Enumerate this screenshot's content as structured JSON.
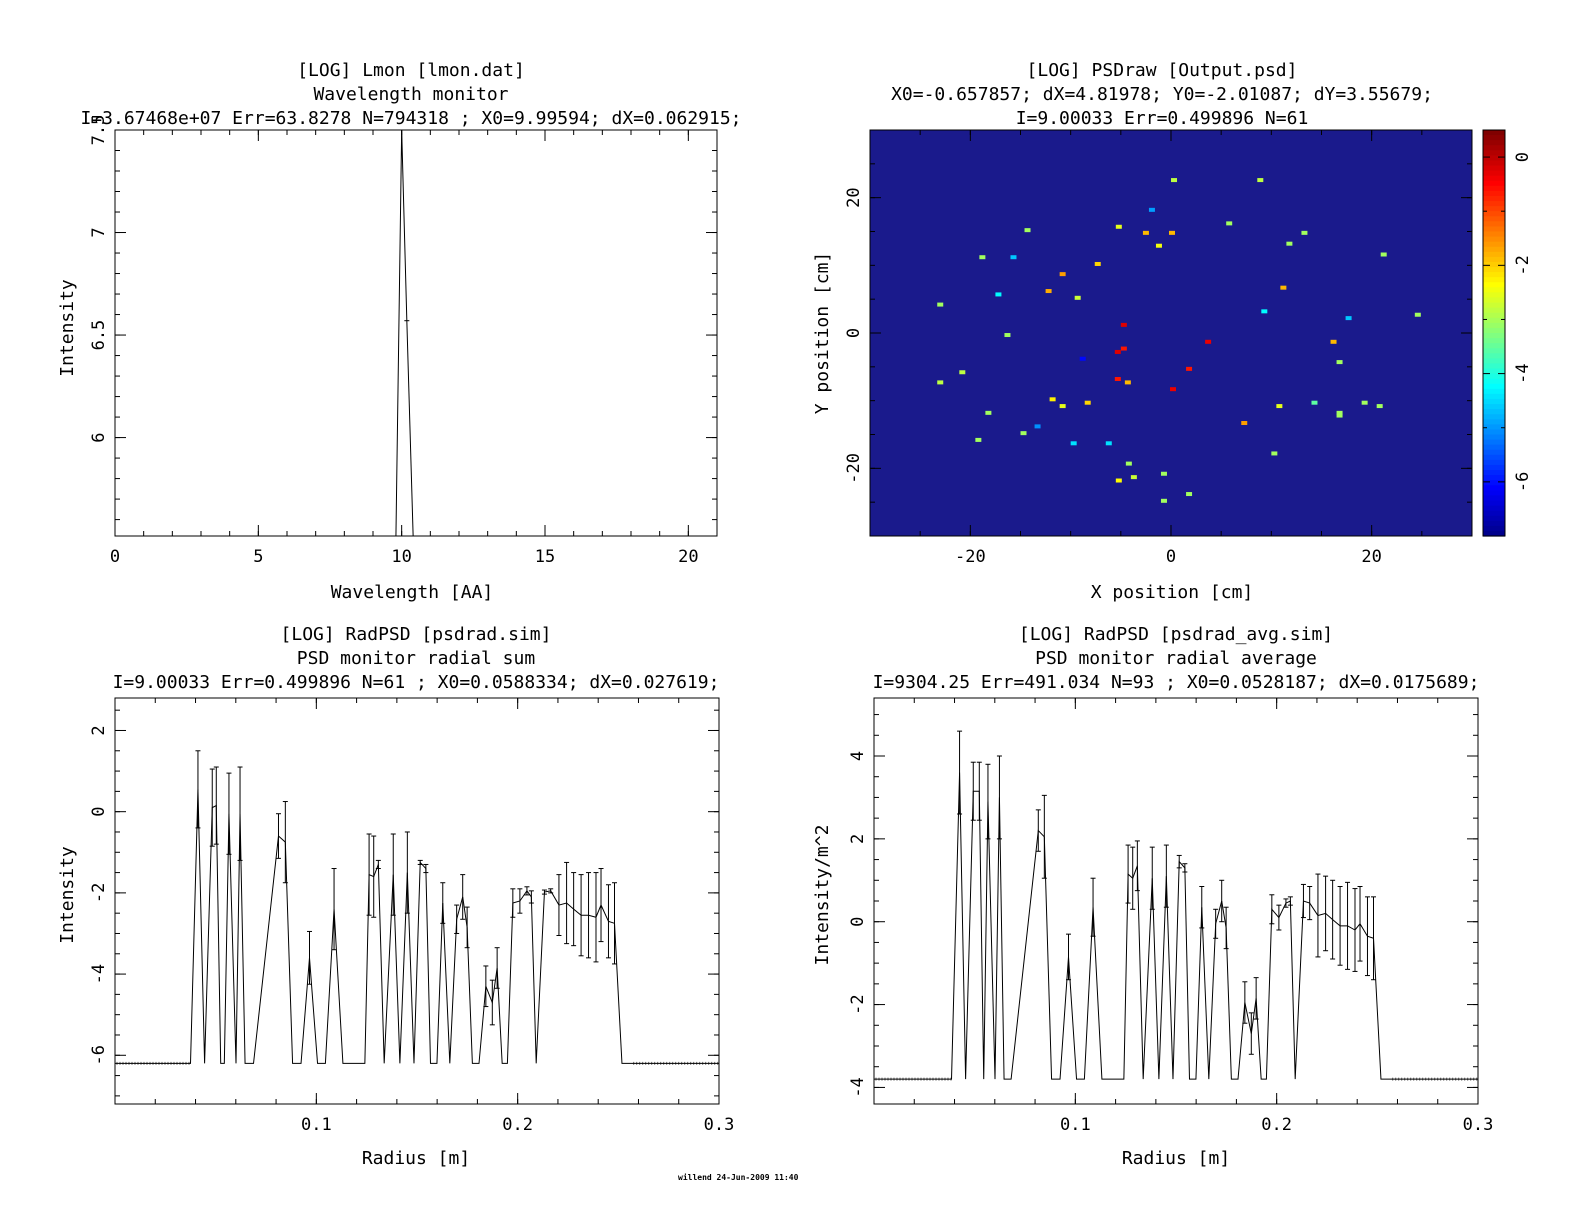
{
  "footer": "willend 24-Jun-2009 11:40",
  "colors": {
    "background": "#ffffff",
    "axes": "#000000",
    "psd_background": "#1a1a8c"
  },
  "chart_data": [
    {
      "id": "lmon",
      "type": "line",
      "title_lines": [
        "[LOG] Lmon [lmon.dat]",
        "Wavelength monitor",
        "I=3.67468e+07 Err=63.8278 N=794318 ; X0=9.99594; dX=0.062915;"
      ],
      "xlabel": "Wavelength [AA]",
      "ylabel": "Intensity",
      "xlim": [
        0,
        21
      ],
      "ylim": [
        5.52,
        7.5
      ],
      "xticks": [
        "0",
        "5",
        "10",
        "15",
        "20"
      ],
      "yticks": [
        "6",
        "6.5",
        "7",
        "7.5"
      ],
      "x": [
        9.8,
        10.0,
        10.18,
        10.4
      ],
      "y": [
        5.52,
        7.5,
        6.57,
        5.52
      ]
    },
    {
      "id": "psdraw",
      "type": "heatmap",
      "title_lines": [
        "[LOG] PSDraw [Output.psd]",
        "X0=-0.657857; dX=4.81978; Y0=-2.01087; dY=3.55679;",
        "I=9.00033 Err=0.499896 N=61"
      ],
      "xlabel": "X position [cm]",
      "ylabel": "Y position [cm]",
      "xlim": [
        -30,
        30
      ],
      "ylim": [
        -30,
        30
      ],
      "xticks": [
        "-20",
        "0",
        "20"
      ],
      "yticks": [
        "-20",
        "0",
        "20"
      ],
      "colorbar_range": [
        -7,
        0.5
      ],
      "colorbar_ticks": [
        "0",
        "-2",
        "-4",
        "-6"
      ],
      "points": [
        [
          0.3,
          22.6,
          -2.8
        ],
        [
          8.9,
          22.6,
          -2.8
        ],
        [
          -1.9,
          18.2,
          -4.9
        ],
        [
          5.8,
          16.2,
          -3.0
        ],
        [
          -14.3,
          15.2,
          -3.0
        ],
        [
          -5.2,
          15.7,
          -2.5
        ],
        [
          -2.5,
          14.8,
          -1.8
        ],
        [
          0.1,
          14.8,
          -1.8
        ],
        [
          13.3,
          14.8,
          -3.0
        ],
        [
          -1.2,
          12.9,
          -2.4
        ],
        [
          11.8,
          13.2,
          -3.0
        ],
        [
          -18.8,
          11.2,
          -3.0
        ],
        [
          -15.7,
          11.2,
          -4.6
        ],
        [
          21.2,
          11.6,
          -3.0
        ],
        [
          -7.3,
          10.2,
          -2.0
        ],
        [
          -10.8,
          8.7,
          -1.6
        ],
        [
          11.2,
          6.7,
          -1.8
        ],
        [
          -12.2,
          6.2,
          -1.7
        ],
        [
          -17.2,
          5.7,
          -4.2
        ],
        [
          -9.3,
          5.2,
          -2.7
        ],
        [
          -23.0,
          4.2,
          -3.0
        ],
        [
          9.3,
          3.2,
          -4.2
        ],
        [
          17.7,
          2.2,
          -4.6
        ],
        [
          24.6,
          2.7,
          -3.0
        ],
        [
          -4.7,
          1.2,
          -0.2
        ],
        [
          -16.3,
          -0.3,
          -3.0
        ],
        [
          3.7,
          -1.3,
          -0.3
        ],
        [
          16.2,
          -1.3,
          -1.8
        ],
        [
          -4.7,
          -2.3,
          -0.6
        ],
        [
          -5.3,
          -2.8,
          -0.2
        ],
        [
          -8.8,
          -3.8,
          -6.0
        ],
        [
          16.8,
          -4.3,
          -3.0
        ],
        [
          1.8,
          -5.3,
          -0.6
        ],
        [
          -20.8,
          -5.8,
          -2.8
        ],
        [
          -5.3,
          -6.8,
          -0.6
        ],
        [
          -4.3,
          -7.3,
          -1.8
        ],
        [
          -23.0,
          -7.3,
          -2.8
        ],
        [
          0.2,
          -8.3,
          -0.3
        ],
        [
          -11.8,
          -9.8,
          -2.2
        ],
        [
          -8.3,
          -10.3,
          -2.0
        ],
        [
          -10.8,
          -10.8,
          -2.5
        ],
        [
          19.3,
          -10.3,
          -3.0
        ],
        [
          20.8,
          -10.8,
          -3.0
        ],
        [
          14.3,
          -10.3,
          -3.5
        ],
        [
          10.8,
          -10.8,
          -2.5
        ],
        [
          16.8,
          -11.8,
          -3.0
        ],
        [
          16.8,
          -12.2,
          -3.0
        ],
        [
          -18.2,
          -11.8,
          -3.0
        ],
        [
          7.3,
          -13.3,
          -1.6
        ],
        [
          -13.3,
          -13.8,
          -5.0
        ],
        [
          -14.7,
          -14.8,
          -3.0
        ],
        [
          -19.2,
          -15.8,
          -3.0
        ],
        [
          -9.7,
          -16.3,
          -4.4
        ],
        [
          -6.2,
          -16.3,
          -4.4
        ],
        [
          10.3,
          -17.8,
          -3.0
        ],
        [
          -4.2,
          -19.3,
          -3.0
        ],
        [
          -0.7,
          -20.8,
          -3.0
        ],
        [
          -3.7,
          -21.3,
          -2.7
        ],
        [
          -5.2,
          -21.8,
          -2.3
        ],
        [
          1.8,
          -23.8,
          -3.0
        ],
        [
          -0.7,
          -24.8,
          -3.0
        ]
      ]
    },
    {
      "id": "psdrad",
      "type": "line",
      "title_lines": [
        "[LOG] RadPSD [psdrad.sim]",
        "PSD monitor radial sum",
        "I=9.00033 Err=0.499896 N=61 ; X0=0.0588334; dX=0.027619;"
      ],
      "xlabel": "Radius [m]",
      "ylabel": "Intensity",
      "xlim": [
        0,
        0.3
      ],
      "ylim": [
        -7.2,
        2.8
      ],
      "xticks": [
        "0.1",
        "0.2",
        "0.3"
      ],
      "yticks": [
        "-6",
        "-4",
        "-2",
        "0",
        "2"
      ],
      "baseline": -6.2,
      "x": [
        0.0375,
        0.0412,
        0.0445,
        0.0483,
        0.0503,
        0.0525,
        0.0543,
        0.0566,
        0.0601,
        0.0621,
        0.0646,
        0.0688,
        0.0812,
        0.0846,
        0.0882,
        0.0924,
        0.0966,
        0.1006,
        0.1045,
        0.1088,
        0.1132,
        0.1241,
        0.1262,
        0.1285,
        0.1308,
        0.1337,
        0.1382,
        0.1415,
        0.1452,
        0.1485,
        0.1516,
        0.1544,
        0.1567,
        0.1599,
        0.1628,
        0.1663,
        0.1697,
        0.1727,
        0.1749,
        0.1775,
        0.1808,
        0.1842,
        0.1874,
        0.1898,
        0.1923,
        0.1949,
        0.1976,
        0.2011,
        0.2046,
        0.2068,
        0.2092,
        0.2133,
        0.2164,
        0.2205,
        0.2243,
        0.2278,
        0.2315,
        0.2352,
        0.2389,
        0.2414,
        0.2451,
        0.2481,
        0.2518,
        0.2562
      ],
      "y": [
        -6.2,
        0.55,
        -6.2,
        0.1,
        0.15,
        -6.2,
        -6.2,
        -0.05,
        -6.2,
        -0.05,
        -6.2,
        -6.2,
        -0.6,
        -0.75,
        -6.2,
        -6.2,
        -3.6,
        -6.2,
        -6.2,
        -2.4,
        -6.2,
        -6.2,
        -1.55,
        -1.6,
        -1.3,
        -6.2,
        -1.55,
        -6.2,
        -1.5,
        -6.2,
        -1.25,
        -1.4,
        -6.2,
        -6.2,
        -2.25,
        -6.2,
        -2.65,
        -2.1,
        -2.85,
        -6.2,
        -6.2,
        -4.3,
        -4.7,
        -3.85,
        -6.2,
        -6.2,
        -2.25,
        -2.2,
        -1.95,
        -2.1,
        -6.2,
        -1.98,
        -1.95,
        -2.3,
        -2.25,
        -2.4,
        -2.55,
        -2.55,
        -2.6,
        -2.3,
        -2.7,
        -2.75,
        -6.2,
        -6.2
      ],
      "err": [
        0,
        0.95,
        0,
        0.95,
        0.95,
        0,
        0,
        1.0,
        0,
        1.15,
        0,
        0,
        0.55,
        1.0,
        0,
        0,
        0.65,
        0,
        0,
        1.0,
        0,
        0,
        1.0,
        1.0,
        0.1,
        0,
        1.0,
        0,
        1.0,
        0,
        0.05,
        0.1,
        0,
        0,
        0.5,
        0,
        0.35,
        0.55,
        0.5,
        0,
        0,
        0.5,
        0.55,
        0.5,
        0,
        0,
        0.35,
        0.3,
        0.1,
        0.15,
        0,
        0.05,
        0.05,
        0.75,
        1.0,
        0.9,
        1.0,
        1.05,
        1.1,
        0.9,
        0.9,
        1.0,
        0,
        0
      ]
    },
    {
      "id": "psdrad_avg",
      "type": "line",
      "title_lines": [
        "[LOG] RadPSD [psdrad_avg.sim]",
        "PSD monitor radial average",
        "I=9304.25 Err=491.034 N=93 ; X0=0.0528187; dX=0.0175689;"
      ],
      "xlabel": "Radius [m]",
      "ylabel": "Intensity/m^2",
      "xlim": [
        0,
        0.3
      ],
      "ylim": [
        -4.4,
        5.4
      ],
      "xticks": [
        "0.1",
        "0.2",
        "0.3"
      ],
      "yticks": [
        "-4",
        "-2",
        "0",
        "2",
        "4"
      ],
      "baseline": -3.8,
      "x": [
        0.0385,
        0.0425,
        0.0455,
        0.0493,
        0.0523,
        0.0545,
        0.0566,
        0.0601,
        0.0623,
        0.0646,
        0.0681,
        0.0816,
        0.0846,
        0.0882,
        0.0924,
        0.0966,
        0.1006,
        0.1045,
        0.1088,
        0.1132,
        0.1241,
        0.1262,
        0.1285,
        0.1308,
        0.1337,
        0.1382,
        0.1415,
        0.1452,
        0.1485,
        0.1516,
        0.1544,
        0.1567,
        0.1599,
        0.1628,
        0.1663,
        0.1697,
        0.1727,
        0.1749,
        0.1775,
        0.1808,
        0.1842,
        0.1874,
        0.1898,
        0.1923,
        0.1949,
        0.1976,
        0.2011,
        0.2046,
        0.2068,
        0.2092,
        0.2133,
        0.2164,
        0.2205,
        0.2243,
        0.2278,
        0.2315,
        0.2352,
        0.2389,
        0.2414,
        0.2451,
        0.2481,
        0.2518,
        0.2562
      ],
      "y": [
        -3.8,
        3.6,
        -3.8,
        3.15,
        3.15,
        -3.8,
        2.9,
        -3.8,
        3.0,
        -3.8,
        -3.8,
        2.2,
        2.05,
        -3.8,
        -3.8,
        -0.85,
        -3.8,
        -3.8,
        0.35,
        -3.8,
        -3.8,
        1.15,
        1.05,
        1.35,
        -3.8,
        1.05,
        -3.8,
        1.1,
        -3.8,
        1.45,
        1.3,
        -3.8,
        -3.8,
        0.35,
        -3.8,
        -0.05,
        0.5,
        -0.15,
        -3.8,
        -3.8,
        -1.95,
        -2.7,
        -1.85,
        -3.8,
        -3.8,
        0.3,
        0.1,
        0.45,
        0.5,
        -3.8,
        0.5,
        0.45,
        0.15,
        0.2,
        0.05,
        -0.1,
        -0.1,
        -0.2,
        -0.05,
        -0.35,
        -0.4,
        -3.8,
        -3.8
      ],
      "err": [
        0,
        1.0,
        0,
        0.7,
        0.7,
        0,
        0.9,
        0,
        1.0,
        0,
        0,
        0.5,
        1.0,
        0,
        0,
        0.55,
        0,
        0,
        0.7,
        0,
        0,
        0.7,
        0.75,
        0.6,
        0,
        0.75,
        0,
        0.75,
        0,
        0.15,
        0.1,
        0,
        0,
        0.5,
        0,
        0.35,
        0.5,
        0.5,
        0,
        0,
        0.5,
        0.5,
        0.5,
        0,
        0,
        0.35,
        0.3,
        0.1,
        0.1,
        0,
        0.4,
        0.4,
        1.0,
        0.9,
        0.95,
        0.95,
        1.05,
        1.0,
        0.9,
        0.95,
        1.0,
        0,
        0
      ]
    }
  ]
}
